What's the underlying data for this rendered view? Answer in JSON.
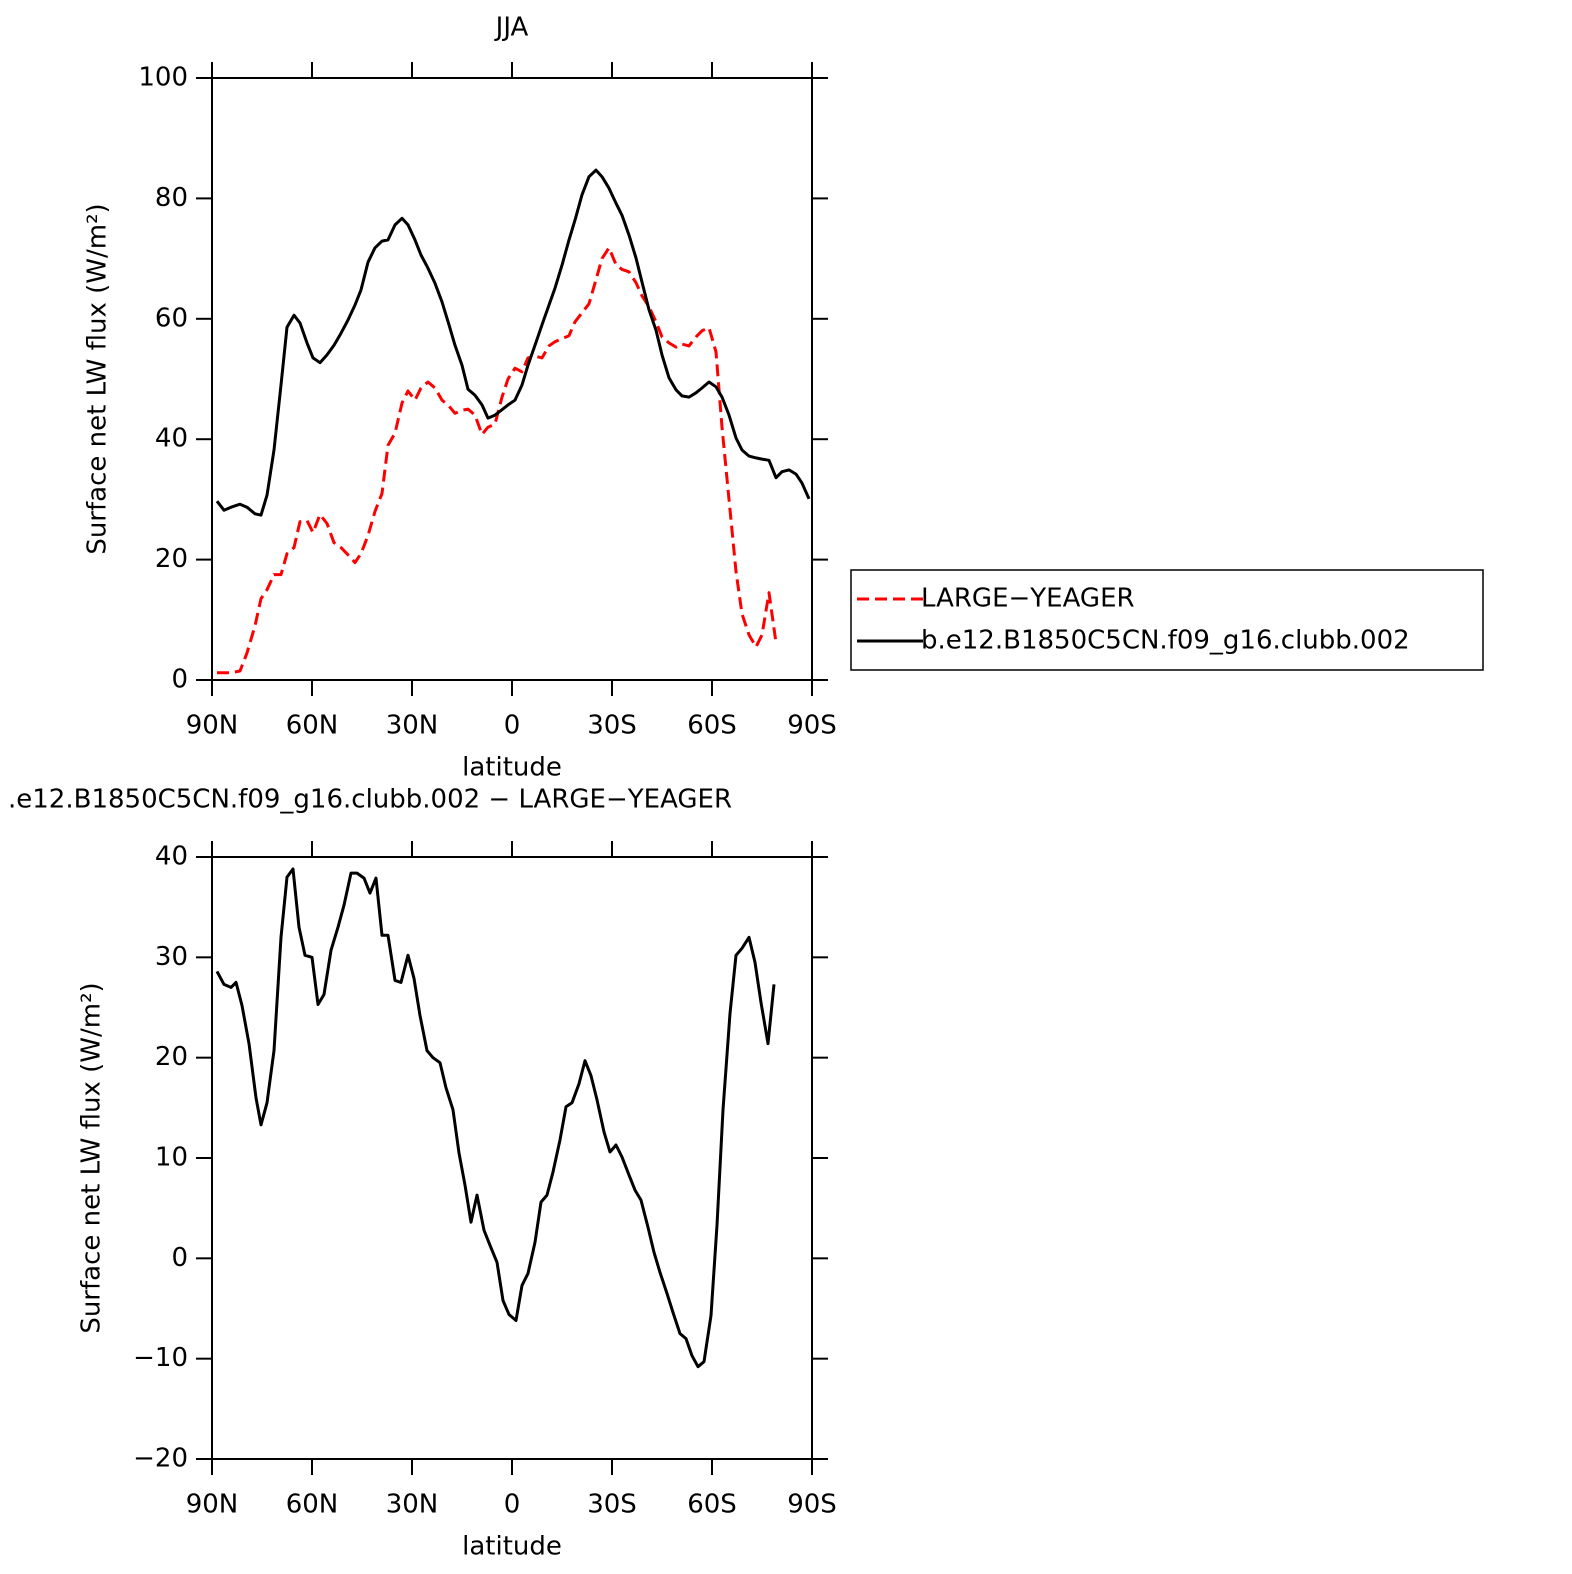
{
  "chart_data": [
    {
      "type": "line",
      "title": "JJA",
      "x_label": "latitude",
      "y_label": "Surface net LW flux (W/m²)",
      "x": [
        88.5,
        86.4,
        84.3,
        81.6,
        79.5,
        77.1,
        75.3,
        73.5,
        71.4,
        69.3,
        67.5,
        65.4,
        63.6,
        61.5,
        59.7,
        57.6,
        55.5,
        53.4,
        51.3,
        49.2,
        47.1,
        45.3,
        43.2,
        41.1,
        39,
        37.2,
        35.1,
        33,
        31.2,
        29.1,
        27.3,
        25.2,
        23.1,
        21,
        18.9,
        17.1,
        15,
        13.2,
        11.1,
        9,
        7.2,
        5.1,
        3,
        1.2,
        -0.9,
        -3,
        -4.8,
        -6.9,
        -9,
        -11.1,
        -12.9,
        -15,
        -17.1,
        -18.9,
        -21,
        -23.1,
        -25.2,
        -27,
        -29.1,
        -31.2,
        -33,
        -35.1,
        -37.2,
        -39,
        -41.1,
        -43.2,
        -45,
        -47.1,
        -49.2,
        -51,
        -53.1,
        -55.2,
        -57,
        -59.1,
        -61.2,
        -63,
        -65.1,
        -67.2,
        -69,
        -71.1,
        -73.2,
        -75,
        -77.1,
        -79.2,
        -81,
        -83.1,
        -85.2,
        -87,
        -89.1
      ],
      "series": [
        {
          "name": "LARGE−YEAGER",
          "color": "#ff0000",
          "dash": "dashed",
          "values": [
            1.2,
            1.2,
            1.2,
            1.5,
            4.5,
            9,
            13.5,
            15,
            17.5,
            17.5,
            21,
            22,
            26.3,
            26.5,
            24.5,
            27.5,
            26,
            22.8,
            22,
            20.8,
            19.5,
            21,
            24,
            28,
            31,
            39,
            41,
            46,
            48,
            46.5,
            48.5,
            49.5,
            48.5,
            46.5,
            45.5,
            44.3,
            44.8,
            45,
            44,
            40.8,
            42,
            42.5,
            47,
            50,
            51.8,
            51.2,
            53.5,
            53.8,
            53.5,
            55.5,
            56.2,
            56.7,
            57.2,
            59.5,
            61,
            62.5,
            66.5,
            70,
            71.8,
            69,
            68.2,
            67.8,
            66,
            63.8,
            62,
            59.5,
            57,
            56,
            55.3,
            55.8,
            55.5,
            57,
            58,
            58.5,
            54.5,
            42,
            30,
            18,
            11,
            7.5,
            5.5,
            7.5,
            14.5,
            6.2,
            null,
            null,
            null,
            null,
            null
          ]
        },
        {
          "name": "b.e12.B1850C5CN.f09_g16.clubb.002",
          "color": "#000000",
          "dash": "solid",
          "values": [
            29.7,
            28.2,
            28.7,
            29.2,
            28.7,
            27.6,
            27.4,
            30.7,
            38.2,
            49,
            58.6,
            60.6,
            59.3,
            56,
            53.5,
            52.7,
            54,
            55.6,
            57.6,
            59.8,
            62.3,
            64.8,
            69.4,
            71.8,
            72.9,
            73.1,
            75.6,
            76.7,
            75.6,
            73.1,
            70.6,
            68.4,
            65.9,
            62.8,
            59,
            55.6,
            52.3,
            48.3,
            47.3,
            45.7,
            43.5,
            44,
            44.9,
            45.7,
            46.5,
            49,
            52.3,
            55.6,
            59,
            62.3,
            65.1,
            68.9,
            73.1,
            76.4,
            80.6,
            83.6,
            84.7,
            83.6,
            81.7,
            79.2,
            77.2,
            73.9,
            70.1,
            66.1,
            61.5,
            58.1,
            54,
            50.2,
            48.2,
            47.2,
            47,
            47.7,
            48.5,
            49.5,
            48.7,
            47,
            44,
            40.2,
            38.2,
            37.2,
            36.9,
            36.7,
            36.5,
            33.6,
            34.6,
            34.9,
            34.2,
            32.7,
            30.1
          ]
        }
      ],
      "xlim": [
        90,
        -90
      ],
      "xticks": [
        {
          "value": 90,
          "label": "90N"
        },
        {
          "value": 60,
          "label": "60N"
        },
        {
          "value": 30,
          "label": "30N"
        },
        0,
        {
          "value": -30,
          "label": "30S"
        },
        {
          "value": -60,
          "label": "60S"
        },
        {
          "value": -90,
          "label": "90S"
        }
      ],
      "ylim": [
        0,
        100
      ],
      "yticks": [
        0,
        20,
        40,
        60,
        80,
        100
      ],
      "legend": "outside-right"
    },
    {
      "type": "line",
      "title": ".e12.B1850C5CN.f09_g16.clubb.002 − LARGE−YEAGER",
      "x_label": "latitude",
      "y_label": "Surface net LW flux (W/m²)",
      "x": [
        88.5,
        86.4,
        84.3,
        82.8,
        81,
        78.9,
        76.8,
        75.3,
        73.5,
        71.4,
        69.3,
        67.5,
        65.7,
        63.9,
        62.1,
        60,
        58.2,
        56.4,
        54.3,
        52.2,
        50.4,
        48.3,
        46.5,
        44.4,
        42.6,
        40.8,
        39,
        37.2,
        35.1,
        33.3,
        31.2,
        29.4,
        27.6,
        25.5,
        23.7,
        21.6,
        19.8,
        17.7,
        15.9,
        14.1,
        12.3,
        10.5,
        8.4,
        6.6,
        4.5,
        2.7,
        0.9,
        -1.2,
        -3,
        -4.8,
        -6.9,
        -8.7,
        -10.5,
        -12.3,
        -14.4,
        -16.2,
        -18,
        -20.1,
        -21.9,
        -23.7,
        -25.5,
        -27.6,
        -29.4,
        -31.2,
        -33,
        -35.1,
        -36.9,
        -38.7,
        -40.8,
        -42.6,
        -44.4,
        -46.5,
        -48.3,
        -50.4,
        -52.2,
        -54,
        -55.8,
        -57.6,
        -59.7,
        -61.5,
        -63.3,
        -65.4,
        -67.2,
        -69,
        -71.1,
        -72.9,
        -74.7,
        -76.8,
        -78.6
      ],
      "series": [
        {
          "name": null,
          "color": "#000000",
          "dash": "solid",
          "values": [
            28.6,
            27.3,
            27,
            27.5,
            25.2,
            21.4,
            16,
            13.3,
            15.5,
            20.7,
            32,
            38,
            38.8,
            33,
            30.2,
            30,
            25.3,
            26.3,
            30.7,
            33,
            35.2,
            38.4,
            38.4,
            37.9,
            36.4,
            37.9,
            32.2,
            32.2,
            27.7,
            27.5,
            30.2,
            27.9,
            24.2,
            20.7,
            20,
            19.5,
            17,
            14.8,
            10.5,
            7.3,
            3.6,
            6.3,
            2.8,
            1.3,
            -0.4,
            -4.2,
            -5.6,
            -6.2,
            -2.7,
            -1.5,
            1.6,
            5.6,
            6.3,
            8.6,
            11.8,
            15.1,
            15.5,
            17.4,
            19.7,
            18.2,
            15.8,
            12.6,
            10.6,
            11.3,
            10.1,
            8.3,
            6.8,
            5.8,
            3.1,
            0.6,
            -1.4,
            -3.5,
            -5.4,
            -7.5,
            -8,
            -9.7,
            -10.8,
            -10.3,
            -5.7,
            3.3,
            14.8,
            24.4,
            30.2,
            30.9,
            32,
            29.5,
            25.5,
            21.4,
            27.3
          ]
        }
      ],
      "xlim": [
        90,
        -90
      ],
      "xticks": [
        {
          "value": 90,
          "label": "90N"
        },
        {
          "value": 60,
          "label": "60N"
        },
        {
          "value": 30,
          "label": "30N"
        },
        0,
        {
          "value": -30,
          "label": "30S"
        },
        {
          "value": -60,
          "label": "60S"
        },
        {
          "value": -90,
          "label": "90S"
        }
      ],
      "ylim": [
        -20,
        40
      ],
      "yticks": [
        {
          "value": -20,
          "label": "−20"
        },
        {
          "value": -10,
          "label": "−10"
        },
        0,
        10,
        20,
        30,
        40
      ],
      "legend": null
    }
  ]
}
